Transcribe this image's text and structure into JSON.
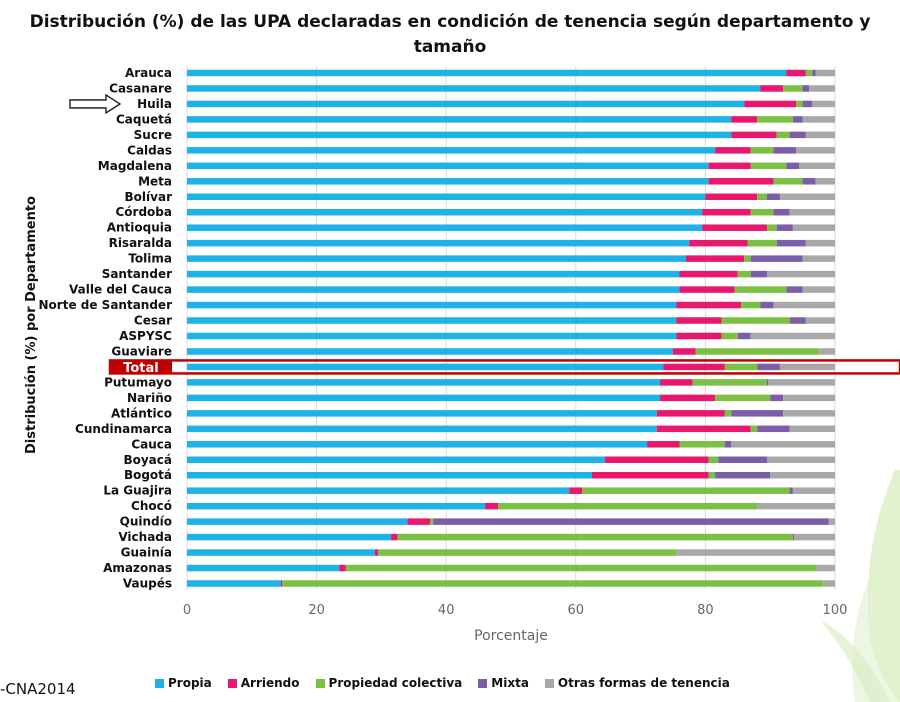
{
  "chart_data": {
    "type": "bar",
    "orientation": "horizontal",
    "stacked": true,
    "title": "Distribución (%) de las UPA declaradas en condición de tenencia según departamento y tamaño",
    "xlabel": "Porcentaje",
    "ylabel": "Distribución (%) por Departamento",
    "xlim": [
      0,
      100
    ],
    "xticks": [
      "0",
      "20",
      "40",
      "60",
      "80",
      "100"
    ],
    "grid": true,
    "legend_position": "bottom",
    "highlighted_category": "Total",
    "pointed_category": "Huila",
    "categories": [
      "Arauca",
      "Casanare",
      "Huila",
      "Caquetá",
      "Sucre",
      "Caldas",
      "Magdalena",
      "Meta",
      "Bolívar",
      "Córdoba",
      "Antioquia",
      "Risaralda",
      "Tolima",
      "Santander",
      "Valle del Cauca",
      "Norte de Santander",
      "Cesar",
      "ASPYSC",
      "Guaviare",
      "Total",
      "Putumayo",
      "Nariño",
      "Atlántico",
      "Cundinamarca",
      "Cauca",
      "Boyacá",
      "Bogotá",
      "La Guajira",
      "Chocó",
      "Quindío",
      "Vichada",
      "Guainía",
      "Amazonas",
      "Vaupés"
    ],
    "series": [
      {
        "name": "Propia",
        "color": "#1fb2e8",
        "values": [
          92.5,
          88.5,
          86,
          84,
          84,
          81.5,
          80.5,
          80.5,
          80,
          79.5,
          79.5,
          77.5,
          77,
          76,
          76,
          75.5,
          75.5,
          75.5,
          75,
          73.5,
          73,
          73,
          72.5,
          72.5,
          71,
          64.5,
          62.5,
          59,
          46,
          34,
          31.5,
          29,
          23.5,
          14.5
        ]
      },
      {
        "name": "Arriendo",
        "color": "#e8186e",
        "values": [
          3,
          3.5,
          8,
          4,
          7,
          5.5,
          6.5,
          10,
          8,
          7.5,
          10,
          9,
          9,
          9,
          8.5,
          10,
          7,
          7,
          3.5,
          9.5,
          5,
          8.5,
          10.5,
          14.5,
          5,
          16,
          18,
          2,
          2,
          3.5,
          1,
          0.5,
          1,
          0.2
        ]
      },
      {
        "name": "Propiedad colectiva",
        "color": "#7ac143",
        "values": [
          1,
          3,
          1,
          5.5,
          2,
          3.5,
          5.5,
          4.5,
          1.5,
          3.5,
          1.5,
          4.5,
          1,
          2,
          8,
          3,
          10.5,
          2.5,
          19,
          5,
          11.5,
          8.5,
          1,
          1,
          7,
          1.5,
          1,
          32,
          40,
          0.5,
          61,
          46,
          72.5,
          83.5
        ]
      },
      {
        "name": "Mixta",
        "color": "#7b5ea7",
        "values": [
          0.5,
          1,
          1.5,
          1.5,
          2.5,
          3.5,
          2,
          2,
          2,
          2.5,
          2.5,
          4.5,
          8,
          2.5,
          2.5,
          2,
          2.5,
          2,
          0,
          3.5,
          0.2,
          2,
          8,
          5,
          1,
          7.5,
          8.5,
          0.5,
          0,
          61,
          0.2,
          0,
          0,
          0
        ]
      },
      {
        "name": "Otras formas de tenencia",
        "color": "#a8a8a8",
        "values": [
          3,
          4,
          3.5,
          5,
          4.5,
          6,
          5.5,
          3,
          8.5,
          7,
          6.5,
          4.5,
          5,
          10.5,
          5,
          9.5,
          4.5,
          13,
          2.5,
          8.5,
          10.3,
          8,
          8,
          7,
          16,
          10.5,
          10,
          6.5,
          12,
          1,
          6.3,
          24.5,
          3,
          1.8
        ]
      }
    ]
  },
  "source": {
    "text": "-CNA2014"
  }
}
